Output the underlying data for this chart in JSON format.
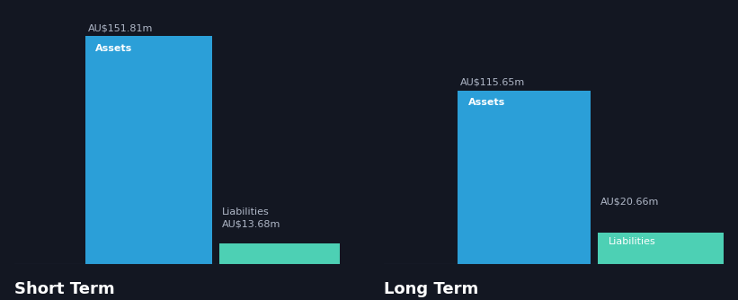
{
  "background_color": "#131722",
  "bar_color_assets": "#2b9fd8",
  "bar_color_liabilities": "#4dd0b4",
  "text_color_white": "#ffffff",
  "text_color_light": "#b0b8c8",
  "short_term_assets": 151.81,
  "short_term_liabilities": 13.68,
  "long_term_assets": 115.65,
  "long_term_liabilities": 20.66,
  "label_assets": "Assets",
  "label_liabilities": "Liabilities",
  "short_term_label": "Short Term",
  "long_term_label": "Long Term",
  "max_value": 160
}
